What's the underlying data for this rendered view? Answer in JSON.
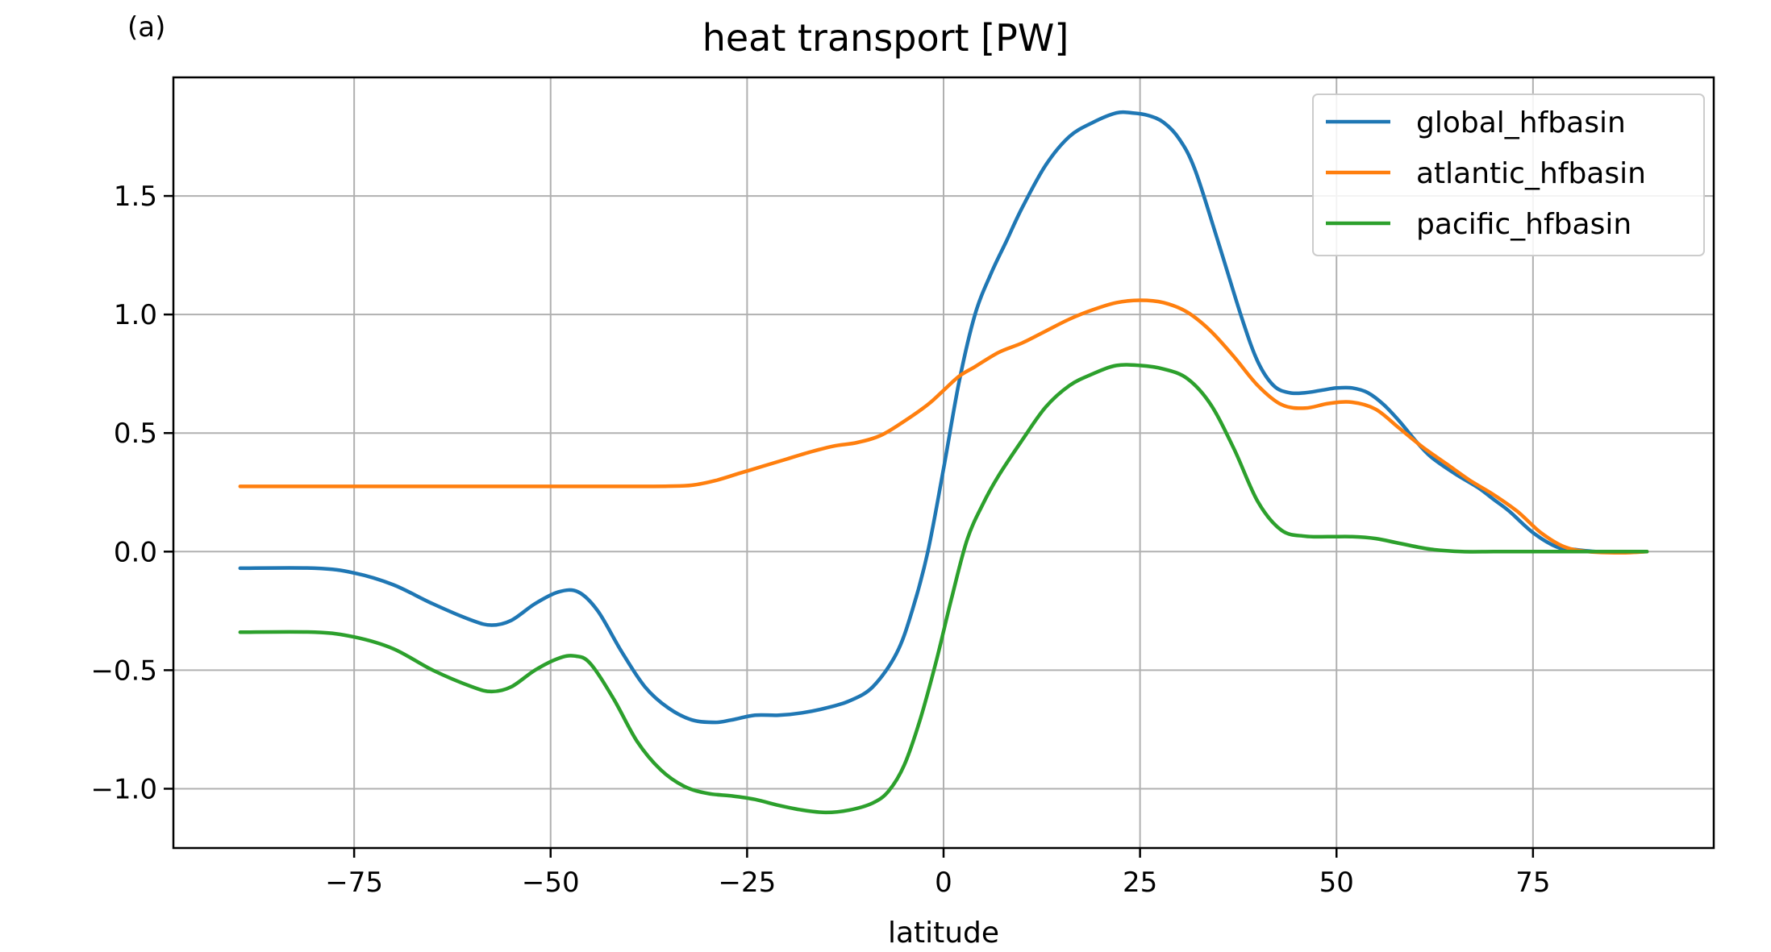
{
  "panel_label": "(a)",
  "chart_data": {
    "type": "line",
    "title": "heat transport [PW]",
    "xlabel": "latitude",
    "ylabel": "",
    "xlim": [
      -98,
      98
    ],
    "ylim": [
      -1.25,
      2.0
    ],
    "xticks": [
      -75,
      -50,
      -25,
      0,
      25,
      50,
      75
    ],
    "xtick_labels": [
      "−75",
      "−50",
      "−25",
      "0",
      "25",
      "50",
      "75"
    ],
    "yticks": [
      -1.0,
      -0.5,
      0.0,
      0.5,
      1.0,
      1.5
    ],
    "ytick_labels": [
      "−1.0",
      "−0.5",
      "0.0",
      "0.5",
      "1.0",
      "1.5"
    ],
    "grid": true,
    "legend_position": "top-right",
    "series": [
      {
        "name": "global_hfbasin",
        "color": "#1f77b4",
        "x": [
          -89.5,
          -80,
          -75,
          -70,
          -65,
          -60,
          -57.5,
          -55,
          -52,
          -49,
          -46.5,
          -44,
          -41,
          -38,
          -35,
          -32,
          -29,
          -27,
          -24,
          -21,
          -18,
          -15,
          -12,
          -9,
          -6,
          -4,
          -2,
          0,
          2,
          4,
          6,
          8,
          10,
          13,
          16,
          19,
          22,
          24,
          26,
          28,
          30,
          32,
          35,
          38,
          40,
          42,
          44,
          46,
          48,
          50,
          52,
          54,
          56,
          58,
          60,
          62,
          65,
          68,
          70,
          72,
          75,
          78,
          80,
          83,
          86,
          89.5
        ],
        "y": [
          -0.07,
          -0.07,
          -0.09,
          -0.14,
          -0.22,
          -0.29,
          -0.31,
          -0.29,
          -0.22,
          -0.17,
          -0.17,
          -0.25,
          -0.42,
          -0.57,
          -0.66,
          -0.71,
          -0.72,
          -0.71,
          -0.69,
          -0.69,
          -0.68,
          -0.66,
          -0.63,
          -0.57,
          -0.43,
          -0.25,
          0.0,
          0.35,
          0.72,
          1.0,
          1.17,
          1.31,
          1.45,
          1.63,
          1.75,
          1.81,
          1.85,
          1.85,
          1.84,
          1.81,
          1.74,
          1.61,
          1.3,
          0.98,
          0.8,
          0.7,
          0.67,
          0.67,
          0.68,
          0.69,
          0.69,
          0.67,
          0.62,
          0.55,
          0.47,
          0.4,
          0.33,
          0.27,
          0.22,
          0.17,
          0.08,
          0.02,
          0.01,
          0.0,
          0.0,
          0.0
        ]
      },
      {
        "name": "atlantic_hfbasin",
        "color": "#ff7f0e",
        "x": [
          -89.5,
          -80,
          -70,
          -60,
          -50,
          -40,
          -35,
          -32,
          -29,
          -26,
          -23,
          -20,
          -17,
          -14,
          -11,
          -8,
          -5,
          -2,
          0,
          2,
          4,
          7,
          10,
          13,
          16,
          19,
          22,
          25,
          28,
          31,
          34,
          37,
          40,
          43,
          46,
          49,
          52,
          55,
          58,
          61,
          64,
          67,
          70,
          73,
          76,
          79,
          82,
          86,
          89.5
        ],
        "y": [
          0.275,
          0.275,
          0.275,
          0.275,
          0.275,
          0.275,
          0.276,
          0.28,
          0.3,
          0.33,
          0.36,
          0.39,
          0.42,
          0.445,
          0.46,
          0.49,
          0.55,
          0.62,
          0.68,
          0.74,
          0.78,
          0.84,
          0.88,
          0.93,
          0.98,
          1.02,
          1.05,
          1.06,
          1.05,
          1.01,
          0.93,
          0.82,
          0.7,
          0.62,
          0.605,
          0.625,
          0.63,
          0.6,
          0.52,
          0.44,
          0.37,
          0.3,
          0.24,
          0.17,
          0.08,
          0.02,
          0.0,
          -0.005,
          0.0
        ]
      },
      {
        "name": "pacific_hfbasin",
        "color": "#2ca02c",
        "x": [
          -89.5,
          -80,
          -75,
          -70,
          -65,
          -60,
          -57.5,
          -55,
          -52,
          -49,
          -47,
          -45,
          -42,
          -39,
          -36,
          -33,
          -30,
          -27,
          -24,
          -21,
          -18,
          -15,
          -12,
          -9,
          -7,
          -5,
          -3,
          -1,
          1,
          3,
          5,
          7,
          10,
          13,
          16,
          19,
          22,
          25,
          28,
          31,
          34,
          37,
          40,
          43,
          46,
          49,
          52,
          55,
          58,
          62,
          66,
          70,
          75,
          80,
          89.5
        ],
        "y": [
          -0.34,
          -0.34,
          -0.36,
          -0.41,
          -0.5,
          -0.57,
          -0.59,
          -0.57,
          -0.5,
          -0.45,
          -0.44,
          -0.47,
          -0.62,
          -0.8,
          -0.92,
          -0.99,
          -1.02,
          -1.03,
          -1.045,
          -1.07,
          -1.09,
          -1.1,
          -1.09,
          -1.06,
          -1.01,
          -0.9,
          -0.71,
          -0.47,
          -0.2,
          0.05,
          0.2,
          0.32,
          0.47,
          0.61,
          0.7,
          0.75,
          0.785,
          0.785,
          0.77,
          0.73,
          0.62,
          0.43,
          0.21,
          0.09,
          0.065,
          0.063,
          0.063,
          0.055,
          0.035,
          0.01,
          0.0,
          0.0,
          0.0,
          0.0,
          0.0
        ]
      }
    ]
  }
}
